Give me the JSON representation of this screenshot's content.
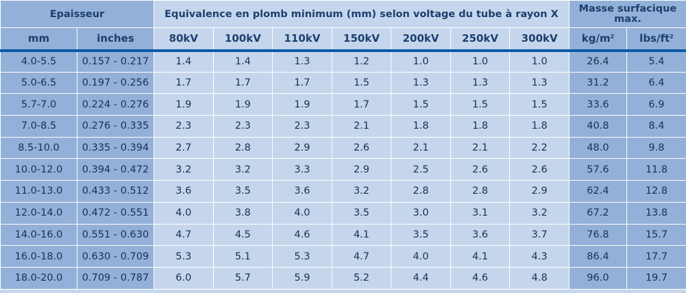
{
  "header": {
    "epaisseur": "Epaisseur",
    "equivalence": "Equivalence en plomb minimum (mm) selon voltage du tube à rayon X",
    "masse_line1": "Masse surfacique",
    "masse_line2": "max."
  },
  "subheader": {
    "mm": "mm",
    "inches": "inches",
    "voltages": [
      "80kV",
      "100kV",
      "110kV",
      "150kV",
      "200kV",
      "250kV",
      "300kV"
    ],
    "kg_unit": "kg/m",
    "kg_sup": "2",
    "lbs_unit": "lbs/ft",
    "lbs_sup": "2"
  },
  "rows": [
    {
      "mm": "4.0-5.5",
      "inches": "0.157 - 0.217",
      "kv": [
        "1.4",
        "1.4",
        "1.3",
        "1.2",
        "1.0",
        "1.0",
        "1.0"
      ],
      "kg": "26.4",
      "lbs": "5.4"
    },
    {
      "mm": "5.0-6.5",
      "inches": "0.197 - 0.256",
      "kv": [
        "1.7",
        "1.7",
        "1.7",
        "1.5",
        "1.3",
        "1.3",
        "1.3"
      ],
      "kg": "31.2",
      "lbs": "6.4"
    },
    {
      "mm": "5.7-7.0",
      "inches": "0.224 - 0.276",
      "kv": [
        "1.9",
        "1.9",
        "1.9",
        "1.7",
        "1.5",
        "1.5",
        "1.5"
      ],
      "kg": "33.6",
      "lbs": "6.9"
    },
    {
      "mm": "7.0-8.5",
      "inches": "0.276 - 0.335",
      "kv": [
        "2.3",
        "2.3",
        "2.3",
        "2.1",
        "1.8",
        "1.8",
        "1.8"
      ],
      "kg": "40.8",
      "lbs": "8.4"
    },
    {
      "mm": "8.5-10.0",
      "inches": "0.335 - 0.394",
      "kv": [
        "2.7",
        "2.8",
        "2.9",
        "2.6",
        "2.1",
        "2.1",
        "2.2"
      ],
      "kg": "48.0",
      "lbs": "9.8"
    },
    {
      "mm": "10.0-12.0",
      "inches": "0.394 - 0.472",
      "kv": [
        "3.2",
        "3.2",
        "3.3",
        "2.9",
        "2.5",
        "2.6",
        "2.6"
      ],
      "kg": "57.6",
      "lbs": "11.8"
    },
    {
      "mm": "11.0-13.0",
      "inches": "0.433 - 0.512",
      "kv": [
        "3.6",
        "3.5",
        "3.6",
        "3.2",
        "2.8",
        "2.8",
        "2.9"
      ],
      "kg": "62.4",
      "lbs": "12.8"
    },
    {
      "mm": "12.0-14.0",
      "inches": "0.472 - 0.551",
      "kv": [
        "4.0",
        "3.8",
        "4.0",
        "3.5",
        "3.0",
        "3.1",
        "3.2"
      ],
      "kg": "67.2",
      "lbs": "13.8"
    },
    {
      "mm": "14.0-16.0",
      "inches": "0.551 - 0.630",
      "kv": [
        "4.7",
        "4.5",
        "4.6",
        "4.1",
        "3.5",
        "3.6",
        "3.7"
      ],
      "kg": "76.8",
      "lbs": "15.7"
    },
    {
      "mm": "16.0-18.0",
      "inches": "0.630 - 0.709",
      "kv": [
        "5.3",
        "5.1",
        "5.3",
        "4.7",
        "4.0",
        "4.1",
        "4.3"
      ],
      "kg": "86.4",
      "lbs": "17.7"
    },
    {
      "mm": "18.0-20.0",
      "inches": "0.709 - 0.787",
      "kv": [
        "6.0",
        "5.7",
        "5.9",
        "5.2",
        "4.4",
        "4.6",
        "4.8"
      ],
      "kg": "96.0",
      "lbs": "19.7"
    }
  ]
}
